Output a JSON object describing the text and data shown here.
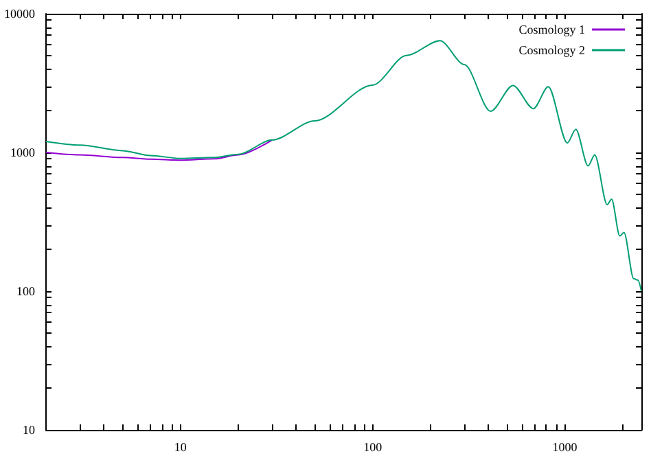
{
  "chart_data": {
    "type": "line",
    "log": "xy",
    "legend": "top right",
    "grid": false,
    "marker": "none",
    "line_style": "solid",
    "x": [
      2,
      3,
      5,
      7,
      10,
      15,
      20,
      30,
      50,
      100,
      150,
      224,
      300,
      411,
      537,
      686,
      820,
      1030,
      1140,
      1320,
      1430,
      1660,
      1750,
      1930,
      2030,
      2280,
      2400,
      2500
    ],
    "xlim": [
      2,
      2500
    ],
    "ylim": [
      10,
      10000
    ],
    "xticks": [
      {
        "value": 2,
        "label": null
      },
      {
        "value": 3,
        "label": null
      },
      {
        "value": 4,
        "label": null
      },
      {
        "value": 5,
        "label": null
      },
      {
        "value": 6,
        "label": null
      },
      {
        "value": 7,
        "label": null
      },
      {
        "value": 8,
        "label": null
      },
      {
        "value": 9,
        "label": null
      },
      10,
      {
        "value": 20,
        "label": null
      },
      {
        "value": 30,
        "label": null
      },
      {
        "value": 40,
        "label": null
      },
      {
        "value": 50,
        "label": null
      },
      {
        "value": 60,
        "label": null
      },
      {
        "value": 70,
        "label": null
      },
      {
        "value": 80,
        "label": null
      },
      {
        "value": 90,
        "label": null
      },
      100,
      {
        "value": 200,
        "label": null
      },
      {
        "value": 300,
        "label": null
      },
      {
        "value": 400,
        "label": null
      },
      {
        "value": 500,
        "label": null
      },
      {
        "value": 600,
        "label": null
      },
      {
        "value": 700,
        "label": null
      },
      {
        "value": 800,
        "label": null
      },
      {
        "value": 900,
        "label": null
      },
      1000,
      {
        "value": 2000,
        "label": null
      }
    ],
    "yticks": [
      10,
      {
        "value": 20,
        "label": null
      },
      {
        "value": 30,
        "label": null
      },
      {
        "value": 40,
        "label": null
      },
      {
        "value": 50,
        "label": null
      },
      {
        "value": 60,
        "label": null
      },
      {
        "value": 70,
        "label": null
      },
      {
        "value": 80,
        "label": null
      },
      {
        "value": 90,
        "label": null
      },
      100,
      {
        "value": 200,
        "label": null
      },
      {
        "value": 300,
        "label": null
      },
      {
        "value": 400,
        "label": null
      },
      {
        "value": 500,
        "label": null
      },
      {
        "value": 600,
        "label": null
      },
      {
        "value": 700,
        "label": null
      },
      {
        "value": 800,
        "label": null
      },
      {
        "value": 900,
        "label": null
      },
      1000,
      {
        "value": 2000,
        "label": null
      },
      {
        "value": 3000,
        "label": null
      },
      {
        "value": 4000,
        "label": null
      },
      {
        "value": 5000,
        "label": null
      },
      {
        "value": 6000,
        "label": null
      },
      {
        "value": 7000,
        "label": null
      },
      {
        "value": 8000,
        "label": null
      },
      {
        "value": 9000,
        "label": null
      },
      10000
    ],
    "series": [
      {
        "name": "Cosmology 1",
        "color": "#9400d3",
        "values": [
          1000,
          960,
          920,
          895,
          880,
          900,
          960,
          1230,
          null,
          null,
          null,
          null,
          null,
          null,
          null,
          null,
          null,
          null,
          null,
          null,
          null,
          null,
          null,
          null,
          null,
          null,
          null,
          null
        ]
      },
      {
        "name": "Cosmology 2",
        "color": "#009e73",
        "values": [
          1200,
          1130,
          1030,
          950,
          905,
          920,
          970,
          1230,
          1690,
          3060,
          5000,
          6400,
          4300,
          1980,
          3040,
          2070,
          2980,
          1170,
          1470,
          800,
          960,
          420,
          460,
          250,
          265,
          123,
          120,
          100
        ]
      }
    ]
  }
}
